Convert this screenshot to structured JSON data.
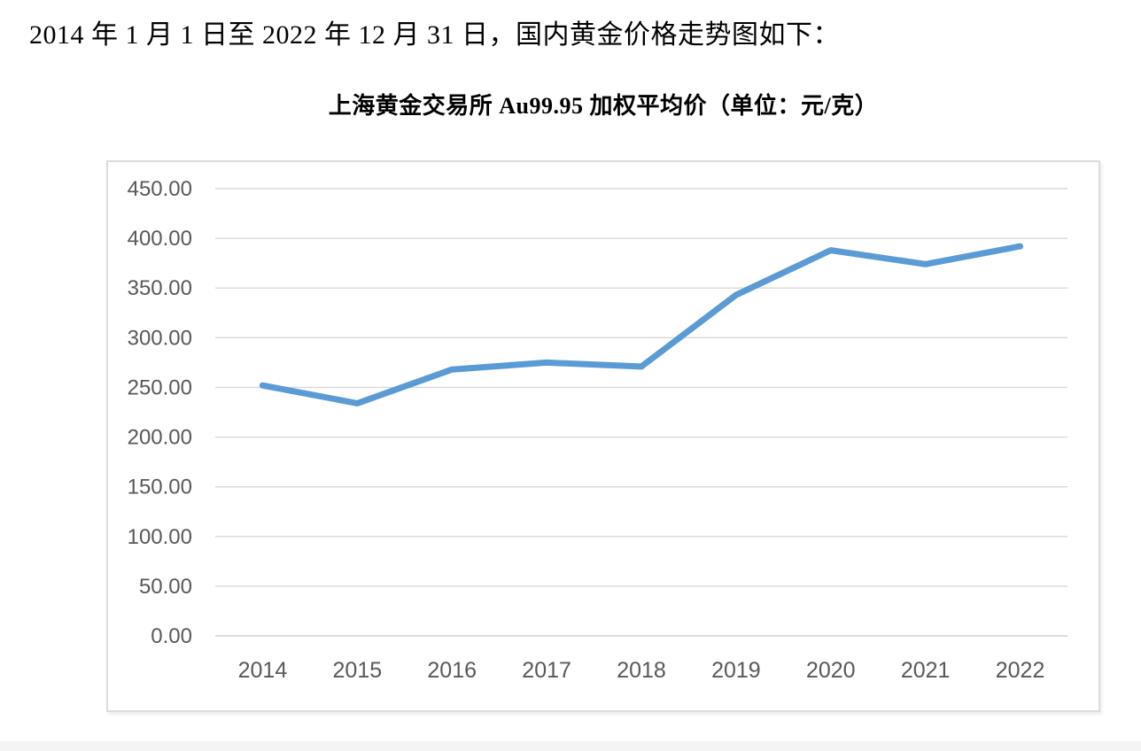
{
  "intro": {
    "text": "2014 年 1 月 1 日至 2022 年 12 月 31 日，国内黄金价格走势图如下："
  },
  "chart": {
    "title": "上海黄金交易所 Au99.95 加权平均价（单位：元/克）"
  },
  "chart_data": {
    "type": "line",
    "title": "上海黄金交易所 Au99.95 加权平均价（单位：元/克）",
    "categories": [
      "2014",
      "2015",
      "2016",
      "2017",
      "2018",
      "2019",
      "2020",
      "2021",
      "2022"
    ],
    "series": [
      {
        "name": "Au99.95加权平均价",
        "values": [
          252,
          234,
          268,
          275,
          271,
          343,
          388,
          374,
          392
        ]
      }
    ],
    "xlabel": "",
    "ylabel": "",
    "unit": "元/克",
    "ylim": [
      0,
      450
    ],
    "ytick_step": 50,
    "ytick_decimals": 2,
    "grid": "horizontal",
    "legend_position": "none",
    "colors": {
      "line": "#5b9bd5",
      "gridline": "#d9d9d9",
      "axis_line": "#d0d0d0",
      "tick_label": "#595959",
      "chart_border": "#dcdcdc"
    }
  }
}
